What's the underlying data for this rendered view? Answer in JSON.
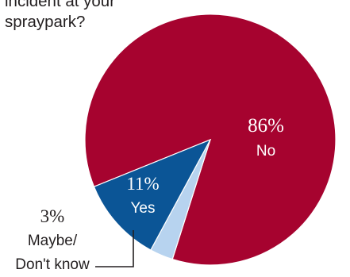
{
  "question": {
    "lines": [
      "incident at your",
      "spraypark?"
    ]
  },
  "chart_data": {
    "type": "pie",
    "slices": [
      {
        "label": "No",
        "value": 86,
        "value_label": "86%",
        "color": "#a6032f"
      },
      {
        "label": "Maybe/ Don't know",
        "label_lines": [
          "Maybe/",
          "Don't know"
        ],
        "value": 3,
        "value_label": "3%",
        "color": "#b7d3ef"
      },
      {
        "label": "Yes",
        "value": 11,
        "value_label": "11%",
        "color": "#0b5596"
      }
    ]
  }
}
